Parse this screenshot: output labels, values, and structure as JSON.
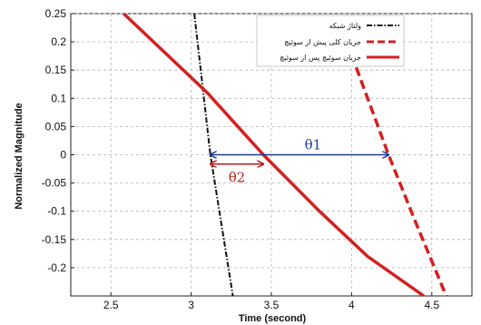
{
  "chart_data": {
    "type": "line",
    "xlabel": "Time (second)",
    "ylabel": "Normalized Magnitude",
    "xlim": [
      2.25,
      4.75
    ],
    "ylim": [
      -0.25,
      0.25
    ],
    "xticks": [
      2.5,
      3,
      3.5,
      4,
      4.5
    ],
    "xtick_labels": [
      "2.5",
      "3",
      "3.5",
      "4",
      "4.5"
    ],
    "yticks": [
      0.25,
      0.2,
      0.15,
      0.1,
      0.05,
      0,
      -0.05,
      -0.1,
      -0.15,
      -0.2
    ],
    "ytick_labels": [
      "0.25",
      "0.2",
      "0.15",
      "0.1",
      "0.05",
      "0",
      "-0.05",
      "-0.1",
      "-0.15",
      "-0.2"
    ],
    "grid": true,
    "legend_position": "top-right",
    "series": [
      {
        "name": "ولتاژ شبکه",
        "color": "#111111",
        "style": "dashdot",
        "x": [
          3.02,
          3.12,
          3.26
        ],
        "y": [
          0.25,
          0.0,
          -0.25
        ]
      },
      {
        "name": "جریان کلی پیش از سوئیچ",
        "color": "#d42020",
        "style": "dashed",
        "x": [
          3.97,
          4.1,
          4.23,
          4.4,
          4.59
        ],
        "y": [
          0.2,
          0.1,
          0.0,
          -0.12,
          -0.25
        ]
      },
      {
        "name": "جریان سوئیچ پس از سوئیچ",
        "color": "#d42020",
        "style": "solid",
        "x": [
          2.58,
          3.1,
          3.45,
          3.8,
          4.1,
          4.45
        ],
        "y": [
          0.25,
          0.11,
          0.0,
          -0.1,
          -0.18,
          -0.25
        ]
      }
    ],
    "annotations": [
      {
        "label": "θ1",
        "x_start": 3.12,
        "x_end": 4.23,
        "y": 0.0,
        "color": "#1a3a9a"
      },
      {
        "label": "θ2",
        "x_start": 3.12,
        "x_end": 3.45,
        "y": -0.01,
        "color": "#c02020"
      }
    ]
  }
}
